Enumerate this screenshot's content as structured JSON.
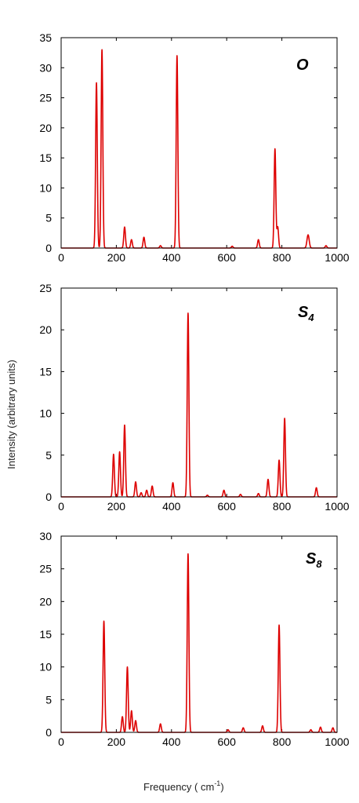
{
  "chart_data": [
    {
      "type": "line",
      "label": "O",
      "label_sub": "",
      "xlim": [
        0,
        1000
      ],
      "ylim": [
        0,
        35
      ],
      "xticks": [
        0,
        200,
        400,
        600,
        800,
        1000
      ],
      "yticks": [
        0,
        5,
        10,
        15,
        20,
        25,
        30,
        35
      ],
      "color": "#dd0000",
      "peaks": [
        {
          "x": 128,
          "y": 27.5,
          "w": 3
        },
        {
          "x": 148,
          "y": 33.0,
          "w": 3
        },
        {
          "x": 230,
          "y": 3.5,
          "w": 3
        },
        {
          "x": 255,
          "y": 1.4,
          "w": 3
        },
        {
          "x": 300,
          "y": 1.8,
          "w": 3
        },
        {
          "x": 360,
          "y": 0.4,
          "w": 3
        },
        {
          "x": 420,
          "y": 32.0,
          "w": 3
        },
        {
          "x": 620,
          "y": 0.3,
          "w": 3
        },
        {
          "x": 715,
          "y": 1.4,
          "w": 3
        },
        {
          "x": 775,
          "y": 16.5,
          "w": 3
        },
        {
          "x": 785,
          "y": 3.5,
          "w": 3
        },
        {
          "x": 895,
          "y": 2.2,
          "w": 4
        },
        {
          "x": 960,
          "y": 0.4,
          "w": 3
        }
      ]
    },
    {
      "type": "line",
      "label": "S",
      "label_sub": "4",
      "xlim": [
        0,
        1000
      ],
      "ylim": [
        0,
        25
      ],
      "xticks": [
        0,
        200,
        400,
        600,
        800,
        1000
      ],
      "yticks": [
        0,
        5,
        10,
        15,
        20,
        25
      ],
      "color": "#dd0000",
      "peaks": [
        {
          "x": 190,
          "y": 5.1,
          "w": 3
        },
        {
          "x": 212,
          "y": 5.4,
          "w": 3
        },
        {
          "x": 230,
          "y": 8.6,
          "w": 3
        },
        {
          "x": 270,
          "y": 1.8,
          "w": 3
        },
        {
          "x": 290,
          "y": 0.5,
          "w": 3
        },
        {
          "x": 310,
          "y": 0.8,
          "w": 3
        },
        {
          "x": 330,
          "y": 1.3,
          "w": 3
        },
        {
          "x": 405,
          "y": 1.7,
          "w": 3
        },
        {
          "x": 460,
          "y": 22.0,
          "w": 3
        },
        {
          "x": 530,
          "y": 0.2,
          "w": 3
        },
        {
          "x": 590,
          "y": 0.8,
          "w": 3
        },
        {
          "x": 650,
          "y": 0.3,
          "w": 3
        },
        {
          "x": 715,
          "y": 0.4,
          "w": 3
        },
        {
          "x": 750,
          "y": 2.1,
          "w": 3
        },
        {
          "x": 790,
          "y": 4.4,
          "w": 3
        },
        {
          "x": 810,
          "y": 9.4,
          "w": 3
        },
        {
          "x": 925,
          "y": 1.1,
          "w": 3
        }
      ]
    },
    {
      "type": "line",
      "label": "S",
      "label_sub": "8",
      "xlim": [
        0,
        1000
      ],
      "ylim": [
        0,
        30
      ],
      "xticks": [
        0,
        200,
        400,
        600,
        800,
        1000
      ],
      "yticks": [
        0,
        5,
        10,
        15,
        20,
        25,
        30
      ],
      "color": "#dd0000",
      "peaks": [
        {
          "x": 155,
          "y": 17.0,
          "w": 3
        },
        {
          "x": 222,
          "y": 2.4,
          "w": 3
        },
        {
          "x": 240,
          "y": 10.0,
          "w": 3
        },
        {
          "x": 255,
          "y": 3.3,
          "w": 3
        },
        {
          "x": 270,
          "y": 1.8,
          "w": 3
        },
        {
          "x": 360,
          "y": 1.3,
          "w": 3
        },
        {
          "x": 460,
          "y": 27.3,
          "w": 3
        },
        {
          "x": 605,
          "y": 0.4,
          "w": 3
        },
        {
          "x": 660,
          "y": 0.7,
          "w": 3
        },
        {
          "x": 730,
          "y": 1.0,
          "w": 3
        },
        {
          "x": 790,
          "y": 16.4,
          "w": 3
        },
        {
          "x": 905,
          "y": 0.4,
          "w": 3
        },
        {
          "x": 940,
          "y": 0.8,
          "w": 3
        },
        {
          "x": 985,
          "y": 0.7,
          "w": 3
        }
      ]
    }
  ],
  "labels": {
    "ylabel": "Intensity (arbitrary units)",
    "xlabel_main": "Frequency ( cm",
    "xlabel_sup": "-1",
    "xlabel_end": ")"
  }
}
